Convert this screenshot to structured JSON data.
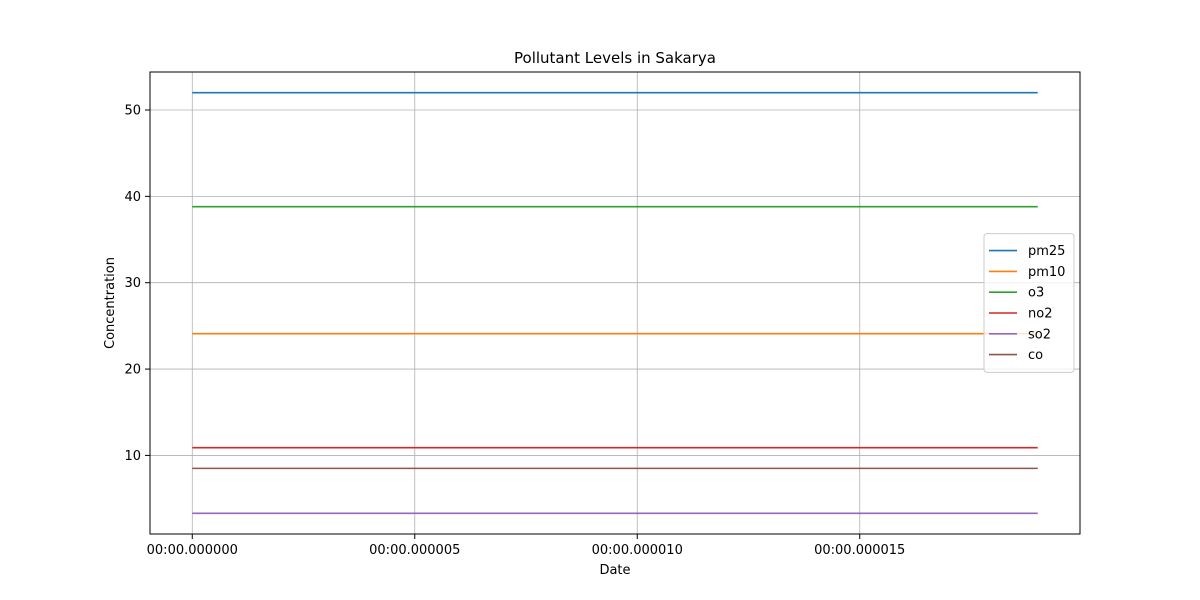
{
  "chart_data": {
    "type": "line",
    "title": "Pollutant Levels in Sakarya",
    "xlabel": "Date",
    "ylabel": "Concentration",
    "x": [
      0,
      1.9e-05
    ],
    "x_ticks": [
      {
        "value": 0,
        "label": "00:00.000000"
      },
      {
        "value": 5e-06,
        "label": "00:00.000005"
      },
      {
        "value": 1e-05,
        "label": "00:00.000010"
      },
      {
        "value": 1.5e-05,
        "label": "00:00.000015"
      }
    ],
    "xlim": [
      -9.5e-07,
      1.995e-05
    ],
    "y_ticks": [
      10,
      20,
      30,
      40,
      50
    ],
    "ylim": [
      0.9,
      54.4
    ],
    "grid": true,
    "legend_placement": "center-right",
    "series": [
      {
        "name": "pm25",
        "color": "#1f77b4",
        "values": [
          52.0,
          52.0
        ]
      },
      {
        "name": "pm10",
        "color": "#ff7f0e",
        "values": [
          24.1,
          24.1
        ]
      },
      {
        "name": "o3",
        "color": "#2ca02c",
        "values": [
          38.8,
          38.8
        ]
      },
      {
        "name": "no2",
        "color": "#d62728",
        "values": [
          10.9,
          10.9
        ]
      },
      {
        "name": "so2",
        "color": "#9467bd",
        "values": [
          3.3,
          3.3
        ]
      },
      {
        "name": "co",
        "color": "#8c564b",
        "values": [
          8.5,
          8.5
        ]
      }
    ]
  }
}
